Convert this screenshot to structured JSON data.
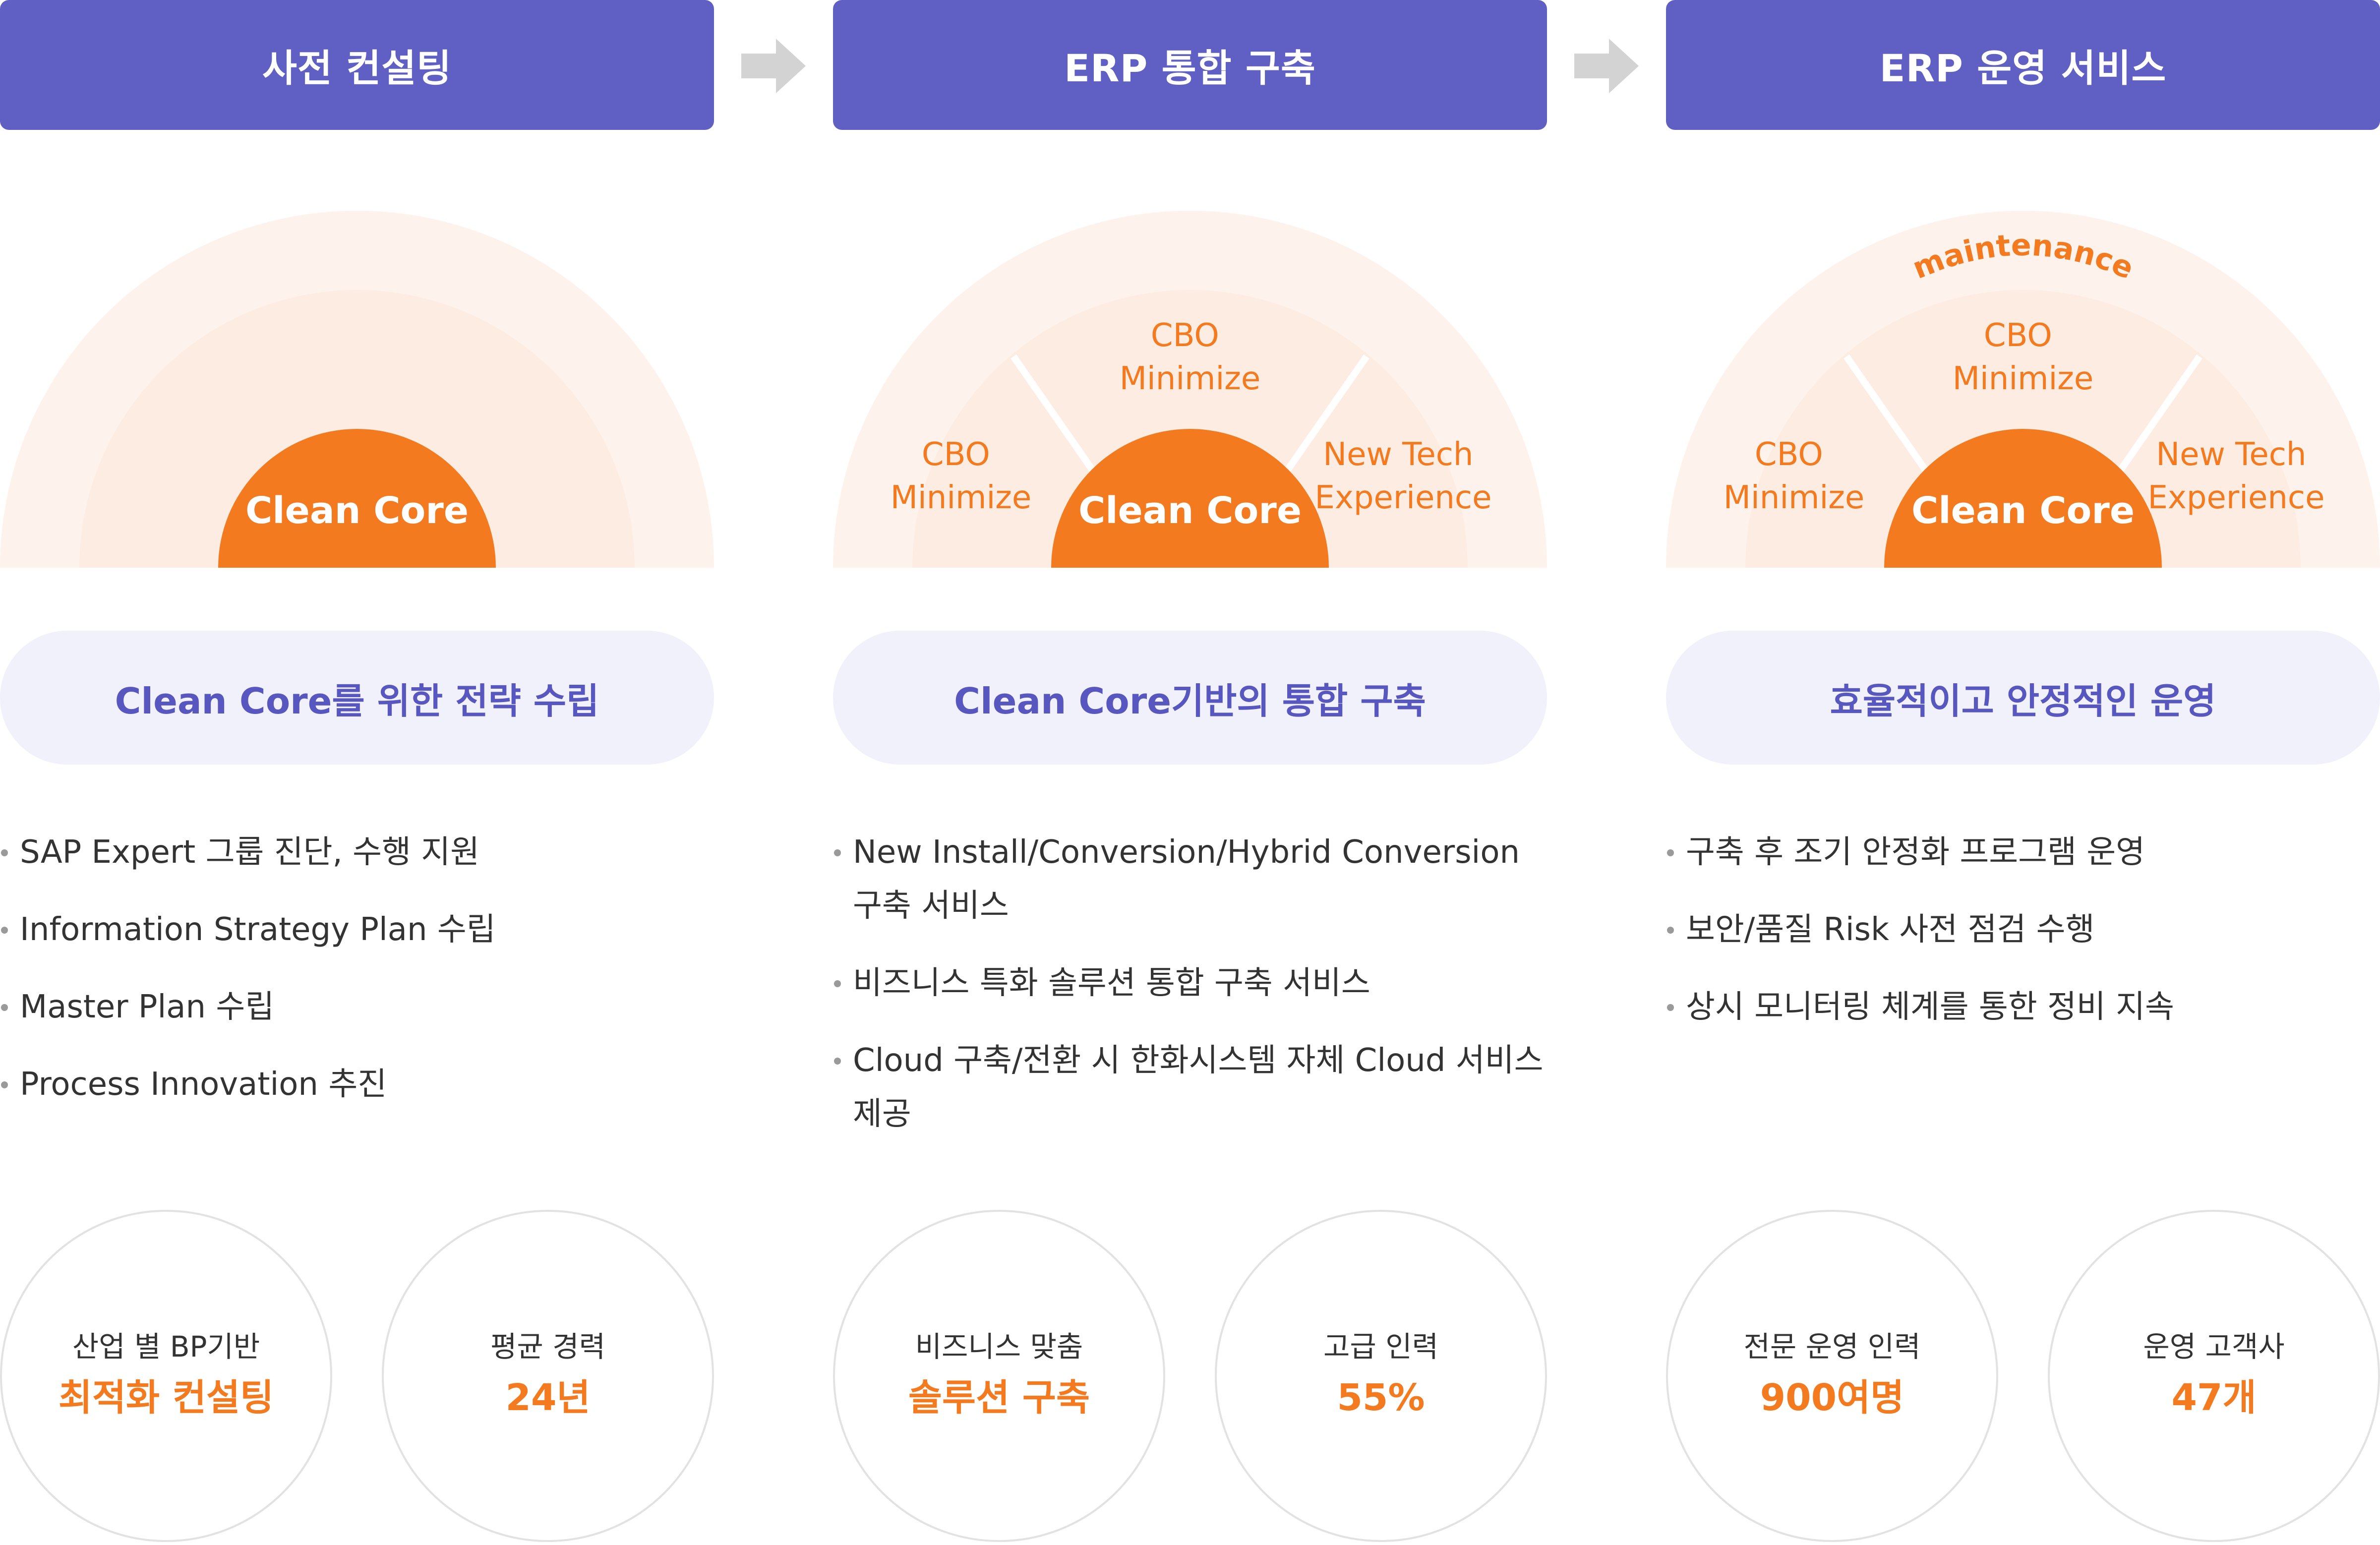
{
  "colors": {
    "header_bg": "#5f5fc4",
    "accent_orange": "#f47a20",
    "pill_bg": "#f1f1fb",
    "pill_text": "#5856bf",
    "outer_arc": "#fdf2ec",
    "inner_arc": "#fde7da",
    "arrow": "#d3d3d3",
    "circle_border": "#e2e2e2"
  },
  "columns": [
    {
      "title": "사전 컨설팅",
      "diagram": {
        "core": "Clean Core",
        "arc_label": "",
        "left": [
          "",
          ""
        ],
        "top": [
          "",
          ""
        ],
        "right": [
          "",
          ""
        ]
      },
      "pill": "Clean Core를 위한 전략 수립",
      "bullets": [
        "SAP Expert 그룹 진단, 수행 지원",
        "Information Strategy Plan 수립",
        "Master Plan 수립",
        "Process Innovation 추진"
      ],
      "stats": [
        {
          "sub": "산업 별 BP기반",
          "main": "최적화 컨설팅"
        },
        {
          "sub": "평균 경력",
          "main": "24년"
        }
      ]
    },
    {
      "title": "ERP 통합 구축",
      "diagram": {
        "core": "Clean Core",
        "arc_label": "",
        "left": [
          "CBO",
          "Minimize"
        ],
        "top": [
          "CBO",
          "Minimize"
        ],
        "right": [
          "New Tech",
          "Experience"
        ]
      },
      "pill": "Clean Core기반의 통합 구축",
      "bullets": [
        "New Install/Conversion/Hybrid Conversion 구축 서비스",
        "비즈니스 특화 솔루션 통합 구축 서비스",
        "Cloud 구축/전환 시 한화시스템 자체 Cloud 서비스 제공"
      ],
      "stats": [
        {
          "sub": "비즈니스 맞춤",
          "main": "솔루션 구축"
        },
        {
          "sub": "고급 인력",
          "main": "55%"
        }
      ]
    },
    {
      "title": "ERP 운영 서비스",
      "diagram": {
        "core": "Clean Core",
        "arc_label": "maintenance",
        "left": [
          "CBO",
          "Minimize"
        ],
        "top": [
          "CBO",
          "Minimize"
        ],
        "right": [
          "New Tech",
          "Experience"
        ]
      },
      "pill": "효율적이고 안정적인 운영",
      "bullets": [
        "구축 후 조기 안정화 프로그램 운영",
        "보안/품질 Risk 사전 점검 수행",
        "상시 모니터링 체계를 통한 정비 지속"
      ],
      "stats": [
        {
          "sub": "전문 운영 인력",
          "main": "900여명"
        },
        {
          "sub": "운영 고객사",
          "main": "47개"
        }
      ]
    }
  ]
}
